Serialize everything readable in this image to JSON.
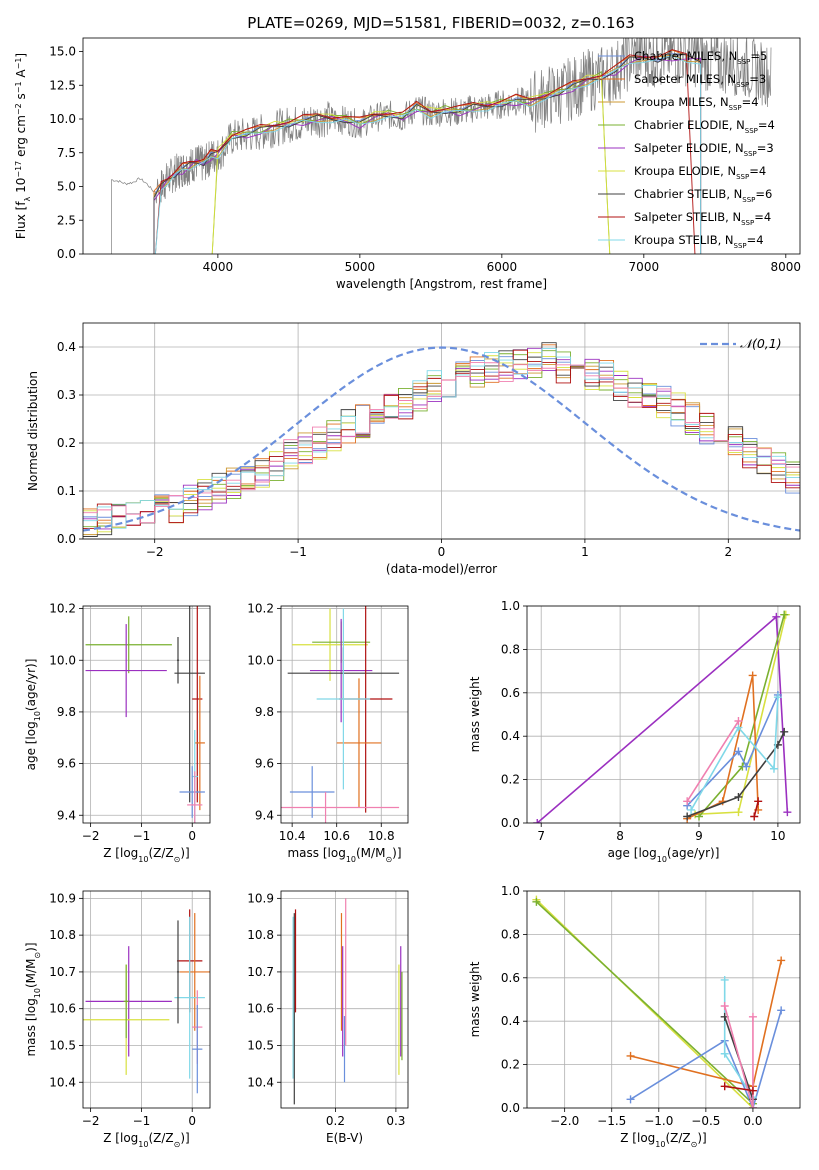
{
  "figure_title": "PLATE=0269, MJD=51581, FIBERID=0032, z=0.163",
  "model_colors": {
    "Chabrier MILES": "#6a8fdc",
    "Salpeter MILES": "#e07020",
    "Kroupa MILES": "#cc9933",
    "Chabrier ELODIE": "#7ab030",
    "Salpeter ELODIE": "#9b30c0",
    "Kroupa ELODIE": "#d8e040",
    "Chabrier STELIB": "#404040",
    "Salpeter STELIB": "#b01010",
    "Kroupa STELIB": "#80d8e8",
    "extra_pink": "#f080b0"
  },
  "chart_data": [
    {
      "type": "line",
      "title": "PLATE=0269, MJD=51581, FIBERID=0032, z=0.163",
      "xlabel": "wavelength [Angstrom, rest frame]",
      "ylabel": "Flux [f_λ 10^-17 erg cm^-2 s^-1 A^-1]",
      "xlim": [
        3050,
        8100
      ],
      "ylim": [
        0,
        16
      ],
      "xticks": [
        4000,
        5000,
        6000,
        7000,
        8000
      ],
      "yticks": [
        0.0,
        2.5,
        5.0,
        7.5,
        10.0,
        12.5,
        15.0
      ],
      "data_color": "#808080",
      "legend_position": "top-right",
      "series": [
        {
          "name": "Chabrier MILES, N_SSP=5",
          "color": "#6a8fdc"
        },
        {
          "name": "Salpeter MILES, N_SSP=3",
          "color": "#e07020"
        },
        {
          "name": "Kroupa MILES, N_SSP=4",
          "color": "#cc9933"
        },
        {
          "name": "Chabrier ELODIE, N_SSP=4",
          "color": "#7ab030"
        },
        {
          "name": "Salpeter ELODIE, N_SSP=3",
          "color": "#9b30c0"
        },
        {
          "name": "Kroupa ELODIE, N_SSP=4",
          "color": "#d8e040"
        },
        {
          "name": "Chabrier STELIB, N_SSP=6",
          "color": "#404040"
        },
        {
          "name": "Salpeter STELIB, N_SSP=4",
          "color": "#b01010"
        },
        {
          "name": "Kroupa STELIB, N_SSP=4",
          "color": "#80d8e8"
        }
      ],
      "data_curve": {
        "x": [
          3250,
          3300,
          3350,
          3400,
          3450,
          3500,
          3550,
          3600,
          3650,
          3700,
          3750,
          3800,
          3850,
          3900,
          3950,
          4000,
          4100,
          4200,
          4300,
          4400,
          4500,
          4600,
          4700,
          4800,
          4900,
          5000,
          5100,
          5200,
          5300,
          5400,
          5500,
          5600,
          5700,
          5800,
          5900,
          6000,
          6100,
          6200,
          6300,
          6400,
          6500,
          6600,
          6700,
          6800,
          6900,
          7000,
          7100,
          7200,
          7300,
          7400,
          7500,
          7600,
          7700,
          7800,
          7900
        ],
        "y": [
          5.5,
          5.4,
          5.2,
          5.3,
          5.6,
          5.2,
          4.6,
          5.0,
          5.6,
          6.0,
          6.3,
          6.5,
          6.8,
          6.6,
          7.2,
          7.3,
          8.6,
          8.8,
          9.0,
          9.3,
          9.6,
          9.7,
          10.0,
          10.0,
          9.9,
          9.6,
          10.1,
          10.3,
          10.1,
          10.8,
          10.4,
          10.6,
          10.5,
          10.8,
          10.9,
          11.1,
          11.3,
          11.2,
          11.6,
          11.9,
          12.3,
          12.8,
          13.1,
          13.5,
          14.5,
          14.8,
          14.6,
          14.8,
          14.8,
          14.6,
          14.1,
          14.2,
          13.9,
          13.5,
          13.2
        ]
      },
      "model_curve": {
        "x": [
          3550,
          3600,
          3650,
          3700,
          3750,
          3800,
          3850,
          3900,
          3950,
          4000,
          4100,
          4200,
          4300,
          4400,
          4500,
          4600,
          4700,
          4800,
          4900,
          5000,
          5100,
          5200,
          5300,
          5400,
          5500,
          5600,
          5700,
          5800,
          5900,
          6000,
          6100,
          6200,
          6300,
          6400,
          6500,
          6600,
          6700,
          6800,
          6900,
          7000,
          7100,
          7200,
          7300,
          7400
        ],
        "y": [
          4.3,
          5.0,
          5.6,
          6.0,
          6.3,
          6.6,
          6.9,
          6.8,
          7.3,
          7.5,
          8.8,
          8.9,
          9.2,
          9.5,
          9.7,
          9.9,
          10.1,
          10.1,
          10.0,
          9.7,
          10.2,
          10.4,
          10.2,
          10.9,
          10.5,
          10.7,
          10.6,
          10.9,
          11.0,
          11.2,
          11.4,
          11.3,
          11.7,
          12.0,
          12.4,
          12.9,
          13.2,
          13.6,
          14.4,
          14.6,
          14.5,
          14.7,
          14.6,
          14.4
        ]
      }
    },
    {
      "type": "histogram",
      "xlabel": "(data-model)/error",
      "ylabel": "Normed distribution",
      "xlim": [
        -2.5,
        2.5
      ],
      "ylim": [
        0,
        0.45
      ],
      "xticks": [
        -2,
        -1,
        0,
        1,
        2
      ],
      "yticks": [
        0.0,
        0.1,
        0.2,
        0.3,
        0.4
      ],
      "grid": true,
      "legend_position": "top-right",
      "reference_curve": {
        "name": "𝒩(0,1)",
        "color": "#6a8fdc"
      },
      "bin_edges_start": -2.5,
      "bin_width": 0.1,
      "bin_values": [
        0.03,
        0.04,
        0.045,
        0.05,
        0.06,
        0.065,
        0.065,
        0.08,
        0.095,
        0.105,
        0.115,
        0.125,
        0.14,
        0.155,
        0.175,
        0.19,
        0.2,
        0.215,
        0.235,
        0.245,
        0.27,
        0.28,
        0.285,
        0.3,
        0.32,
        0.325,
        0.34,
        0.345,
        0.355,
        0.36,
        0.365,
        0.37,
        0.375,
        0.36,
        0.35,
        0.345,
        0.34,
        0.32,
        0.305,
        0.29,
        0.285,
        0.27,
        0.25,
        0.23,
        0.215,
        0.2,
        0.18,
        0.165,
        0.145,
        0.13
      ]
    },
    {
      "type": "errorbar",
      "xlabel": "Z [log10(Z/Z☉)]",
      "ylabel": "age  [log10(age/yr)]",
      "xlim": [
        -2.15,
        0.35
      ],
      "ylim": [
        9.37,
        10.21
      ],
      "xticks": [
        -2,
        -1,
        0
      ],
      "yticks": [
        9.4,
        9.6,
        9.8,
        10.0,
        10.2
      ],
      "points": [
        {
          "x": -1.25,
          "y": 10.06,
          "xerr": 0.85,
          "yerr": 0.11,
          "color": "#7ab030"
        },
        {
          "x": -1.3,
          "y": 9.96,
          "xerr": 0.8,
          "yerr": 0.18,
          "color": "#9b30c0"
        },
        {
          "x": -0.28,
          "y": 10.0,
          "xerr": 0.02,
          "yerr": 0.09,
          "color": "#404040"
        },
        {
          "x": -0.05,
          "y": 9.95,
          "xerr": 0.3,
          "yerr": 0.5,
          "color": "#404040"
        },
        {
          "x": 0.1,
          "y": 9.85,
          "xerr": 0.1,
          "yerr": 0.4,
          "color": "#b01010"
        },
        {
          "x": 0.15,
          "y": 9.68,
          "xerr": 0.1,
          "yerr": 0.26,
          "color": "#e07020"
        },
        {
          "x": 0.05,
          "y": 9.55,
          "xerr": 0.06,
          "yerr": 0.18,
          "color": "#80d8e8"
        },
        {
          "x": 0.0,
          "y": 9.49,
          "xerr": 0.25,
          "yerr": 0.1,
          "color": "#6a8fdc"
        },
        {
          "x": 0.05,
          "y": 9.44,
          "xerr": 0.15,
          "yerr": 0.13,
          "color": "#f080b0"
        }
      ]
    },
    {
      "type": "errorbar",
      "xlabel": "mass [log10(M/M☉)]",
      "ylabel": "",
      "xlim": [
        10.35,
        10.92
      ],
      "ylim": [
        9.37,
        10.21
      ],
      "xticks": [
        10.4,
        10.6,
        10.8
      ],
      "yticks": [
        9.4,
        9.6,
        9.8,
        10.0,
        10.2
      ],
      "points": [
        {
          "x": 10.57,
          "y": 10.06,
          "xerr": 0.17,
          "yerr": 0.14,
          "color": "#d8e040"
        },
        {
          "x": 10.62,
          "y": 10.07,
          "xerr": 0.13,
          "yerr": 0.08,
          "color": "#7ab030"
        },
        {
          "x": 10.62,
          "y": 9.96,
          "xerr": 0.14,
          "yerr": 0.2,
          "color": "#9b30c0"
        },
        {
          "x": 10.63,
          "y": 9.95,
          "xerr": 0.25,
          "yerr": 0.1,
          "color": "#404040"
        },
        {
          "x": 10.73,
          "y": 9.85,
          "xerr": 0.12,
          "yerr": 0.44,
          "color": "#b01010"
        },
        {
          "x": 10.7,
          "y": 9.68,
          "xerr": 0.1,
          "yerr": 0.25,
          "color": "#e07020"
        },
        {
          "x": 10.63,
          "y": 9.85,
          "xerr": 0.12,
          "yerr": 0.35,
          "color": "#80d8e8"
        },
        {
          "x": 10.49,
          "y": 9.49,
          "xerr": 0.1,
          "yerr": 0.1,
          "color": "#6a8fdc"
        },
        {
          "x": 10.55,
          "y": 9.43,
          "xerr": 0.33,
          "yerr": 0.06,
          "color": "#f080b0"
        }
      ]
    },
    {
      "type": "line",
      "xlabel": "age  [log10(age/yr)]",
      "ylabel": "mass weight",
      "xlim": [
        6.82,
        10.28
      ],
      "ylim": [
        0,
        1
      ],
      "xticks": [
        7,
        8,
        9,
        10
      ],
      "yticks": [
        0.0,
        0.2,
        0.4,
        0.6,
        0.8,
        1.0
      ],
      "grid": true,
      "series": [
        {
          "color": "#9b30c0",
          "x": [
            6.95,
            9.98,
            10.12
          ],
          "y": [
            0.0,
            0.95,
            0.05
          ]
        },
        {
          "color": "#d8e040",
          "x": [
            8.95,
            9.5,
            10.1
          ],
          "y": [
            0.04,
            0.05,
            0.96
          ]
        },
        {
          "color": "#7ab030",
          "x": [
            9.0,
            9.55,
            10.08
          ],
          "y": [
            0.03,
            0.26,
            0.96
          ]
        },
        {
          "color": "#e07020",
          "x": [
            8.85,
            9.3,
            9.68,
            9.75
          ],
          "y": [
            0.02,
            0.1,
            0.68,
            0.06
          ]
        },
        {
          "color": "#404040",
          "x": [
            8.85,
            9.5,
            10.0,
            10.08
          ],
          "y": [
            0.03,
            0.12,
            0.36,
            0.42
          ]
        },
        {
          "color": "#6a8fdc",
          "x": [
            8.85,
            9.5,
            9.6,
            10.0
          ],
          "y": [
            0.08,
            0.33,
            0.26,
            0.59
          ]
        },
        {
          "color": "#80d8e8",
          "x": [
            8.9,
            9.5,
            9.95,
            10.0
          ],
          "y": [
            0.06,
            0.44,
            0.25,
            0.58
          ]
        },
        {
          "color": "#f080b0",
          "x": [
            8.85,
            9.5
          ],
          "y": [
            0.1,
            0.47
          ]
        },
        {
          "color": "#b01010",
          "x": [
            9.7,
            9.75
          ],
          "y": [
            0.03,
            0.1
          ]
        }
      ]
    },
    {
      "type": "errorbar",
      "xlabel": "Z [log10(Z/Z☉)]",
      "ylabel": "mass [log10(M/M☉)]",
      "xlim": [
        -2.15,
        0.35
      ],
      "ylim": [
        10.33,
        10.92
      ],
      "xticks": [
        -2,
        -1,
        0
      ],
      "yticks": [
        10.4,
        10.5,
        10.6,
        10.7,
        10.8,
        10.9
      ],
      "points": [
        {
          "x": -1.25,
          "y": 10.62,
          "xerr": 0.85,
          "yerr": 0.15,
          "color": "#9b30c0"
        },
        {
          "x": -1.3,
          "y": 10.57,
          "xerr": 0.85,
          "yerr": 0.15,
          "color": "#d8e040"
        },
        {
          "x": -1.3,
          "y": 10.62,
          "xerr": 0.05,
          "yerr": 0.1,
          "color": "#7ab030"
        },
        {
          "x": -0.05,
          "y": 10.73,
          "xerr": 0.25,
          "yerr": 0.14,
          "color": "#b01010"
        },
        {
          "x": 0.05,
          "y": 10.7,
          "xerr": 0.3,
          "yerr": 0.16,
          "color": "#e07020"
        },
        {
          "x": -0.05,
          "y": 10.63,
          "xerr": 0.3,
          "yerr": 0.22,
          "color": "#80d8e8"
        },
        {
          "x": 0.1,
          "y": 10.55,
          "xerr": 0.1,
          "yerr": 0.1,
          "color": "#f080b0"
        },
        {
          "x": 0.1,
          "y": 10.49,
          "xerr": 0.1,
          "yerr": 0.12,
          "color": "#6a8fdc"
        },
        {
          "x": -0.28,
          "y": 10.7,
          "xerr": 0.02,
          "yerr": 0.14,
          "color": "#404040"
        }
      ]
    },
    {
      "type": "errorbar",
      "xlabel": "E(B-V)",
      "ylabel": "",
      "xlim": [
        0.11,
        0.32
      ],
      "ylim": [
        10.33,
        10.92
      ],
      "xticks": [
        0.2,
        0.3
      ],
      "yticks": [
        10.4,
        10.5,
        10.6,
        10.7,
        10.8,
        10.9
      ],
      "points": [
        {
          "x": 0.13,
          "y": 10.63,
          "xerr": 0,
          "yerr": 0.22,
          "color": "#80d8e8"
        },
        {
          "x": 0.132,
          "y": 10.6,
          "xerr": 0,
          "yerr": 0.26,
          "color": "#404040"
        },
        {
          "x": 0.134,
          "y": 10.73,
          "xerr": 0,
          "yerr": 0.14,
          "color": "#b01010"
        },
        {
          "x": 0.21,
          "y": 10.7,
          "xerr": 0,
          "yerr": 0.16,
          "color": "#e07020"
        },
        {
          "x": 0.212,
          "y": 10.62,
          "xerr": 0,
          "yerr": 0.15,
          "color": "#9b30c0"
        },
        {
          "x": 0.215,
          "y": 10.49,
          "xerr": 0,
          "yerr": 0.09,
          "color": "#6a8fdc"
        },
        {
          "x": 0.217,
          "y": 10.7,
          "xerr": 0,
          "yerr": 0.2,
          "color": "#f080b0"
        },
        {
          "x": 0.305,
          "y": 10.57,
          "xerr": 0,
          "yerr": 0.15,
          "color": "#d8e040"
        },
        {
          "x": 0.308,
          "y": 10.62,
          "xerr": 0,
          "yerr": 0.15,
          "color": "#9b30c0"
        },
        {
          "x": 0.31,
          "y": 10.58,
          "xerr": 0,
          "yerr": 0.12,
          "color": "#7ab030"
        }
      ]
    },
    {
      "type": "line",
      "xlabel": "Z [log10(Z/Z☉)]",
      "ylabel": "mass weight",
      "xlim": [
        -2.4,
        0.5
      ],
      "ylim": [
        0,
        1
      ],
      "xticks": [
        -2.0,
        -1.5,
        -1.0,
        -0.5,
        0.0
      ],
      "yticks": [
        0.0,
        0.2,
        0.4,
        0.6,
        0.8,
        1.0
      ],
      "grid": true,
      "series": [
        {
          "color": "#d8e040",
          "x": [
            -2.3,
            0.0
          ],
          "y": [
            0.96,
            0.0
          ]
        },
        {
          "color": "#7ab030",
          "x": [
            -2.3,
            0.0
          ],
          "y": [
            0.95,
            0.02
          ]
        },
        {
          "color": "#e07020",
          "x": [
            -1.3,
            0.0,
            0.3
          ],
          "y": [
            0.24,
            0.1,
            0.68
          ]
        },
        {
          "color": "#6a8fdc",
          "x": [
            -1.3,
            -0.3,
            0.0,
            0.3
          ],
          "y": [
            0.04,
            0.31,
            0.0,
            0.45
          ]
        },
        {
          "color": "#80d8e8",
          "x": [
            -0.3,
            -0.3,
            0.0
          ],
          "y": [
            0.59,
            0.25,
            0.05
          ]
        },
        {
          "color": "#404040",
          "x": [
            -0.3,
            0.0
          ],
          "y": [
            0.42,
            0.04
          ]
        },
        {
          "color": "#f080b0",
          "x": [
            -0.3,
            0.0,
            0.0
          ],
          "y": [
            0.47,
            0.0,
            0.42
          ]
        },
        {
          "color": "#b01010",
          "x": [
            -0.3,
            0.0
          ],
          "y": [
            0.1,
            0.08
          ]
        }
      ]
    }
  ]
}
